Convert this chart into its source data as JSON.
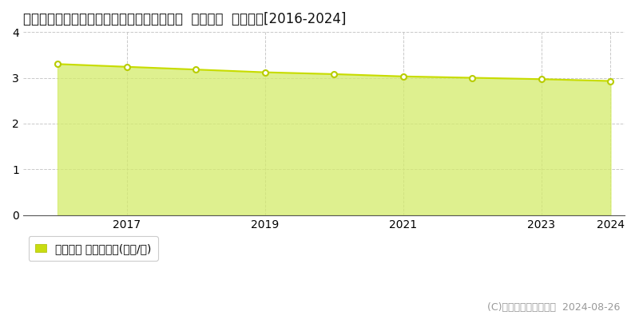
{
  "title": "新潟県上越市大字有間川字家浦８０９番１外  地価公示  地価推移[2016-2024]",
  "years": [
    2016,
    2017,
    2018,
    2019,
    2020,
    2021,
    2022,
    2023,
    2024
  ],
  "values": [
    3.3,
    3.24,
    3.18,
    3.12,
    3.08,
    3.03,
    3.0,
    2.97,
    2.93
  ],
  "ylim": [
    0,
    4
  ],
  "yticks": [
    0,
    1,
    2,
    3,
    4
  ],
  "xticks": [
    2017,
    2019,
    2021,
    2023,
    2024
  ],
  "fill_color": "#d4eb6a",
  "line_color": "#c8dc00",
  "marker_face_color": "#ffffff",
  "marker_edge_color": "#b8cc00",
  "bg_color": "#ffffff",
  "plot_bg_color": "#f5f5f5",
  "grid_color": "#bbbbbb",
  "legend_label": "地価公示 平均坪単価(万円/坪)",
  "legend_marker_color": "#c8dc10",
  "copyright_text": "(C)土地価格ドットコム  2024-08-26",
  "title_fontsize": 12,
  "axis_fontsize": 10,
  "legend_fontsize": 10,
  "copyright_fontsize": 9
}
